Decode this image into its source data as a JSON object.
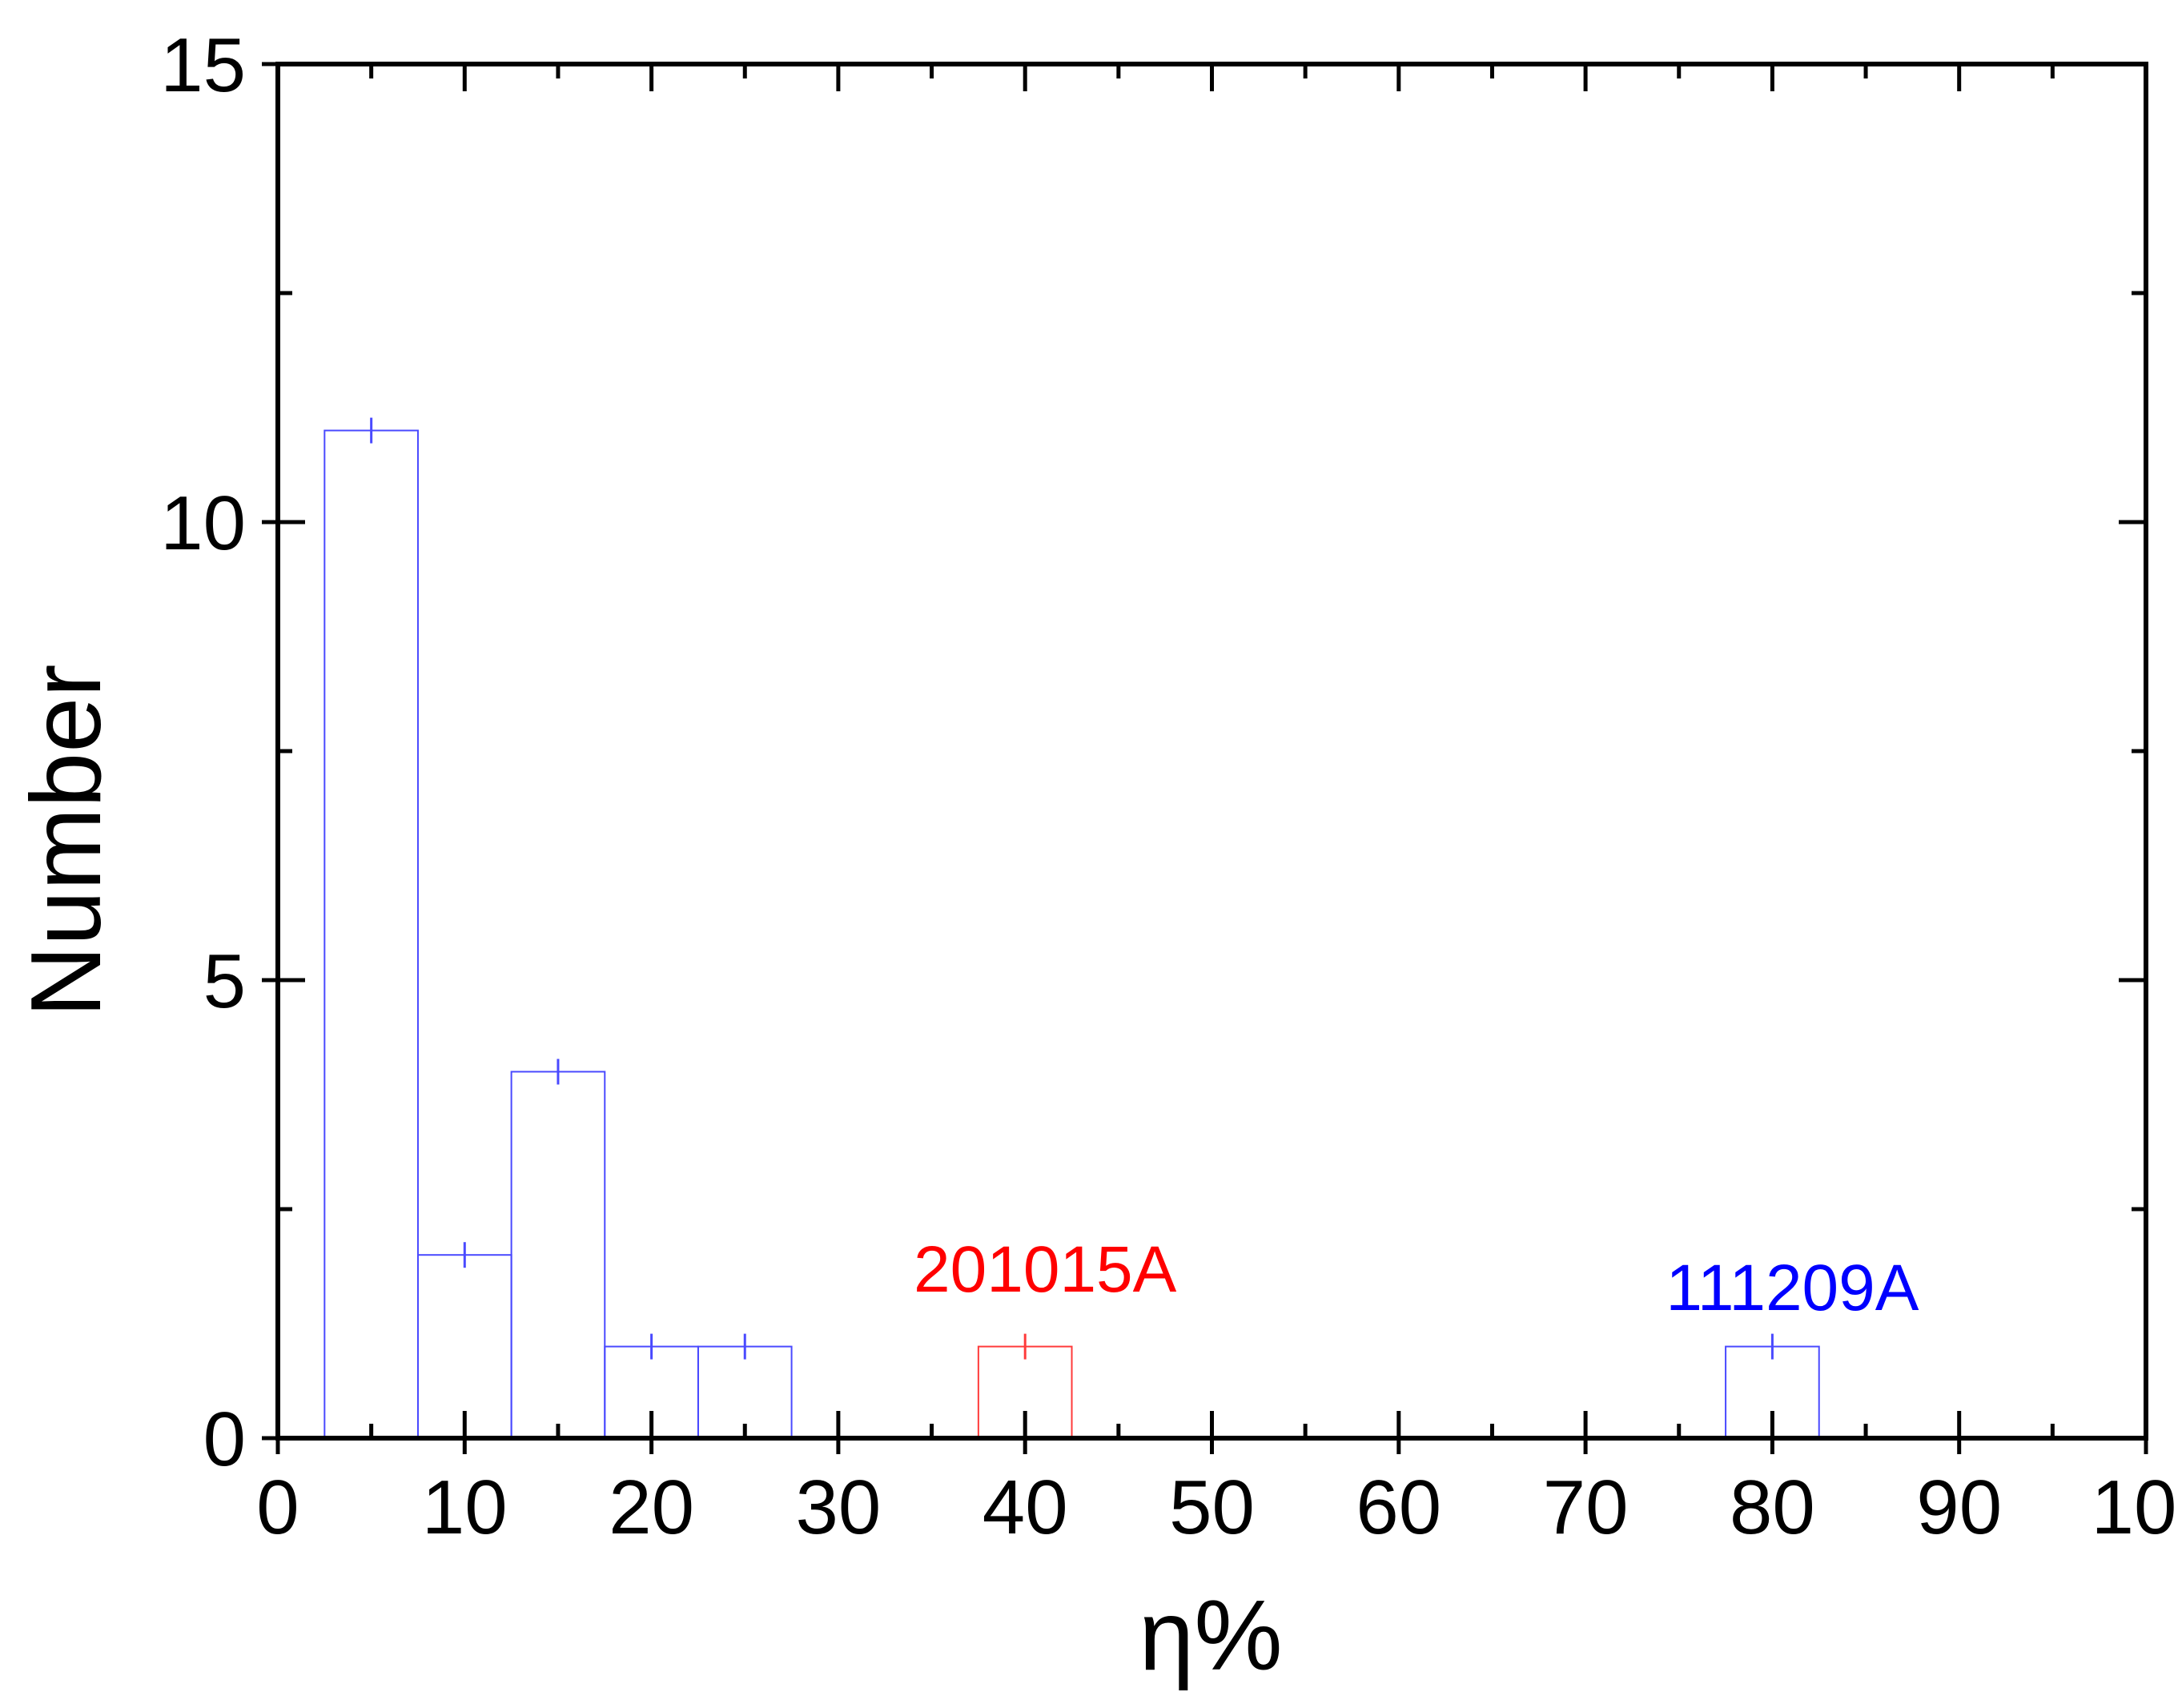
{
  "chart_data": {
    "type": "bar",
    "xlabel": "η%",
    "ylabel": "Number",
    "xlim": [
      0,
      100
    ],
    "ylim": [
      0,
      15
    ],
    "x_ticks": [
      "0",
      "10",
      "20",
      "30",
      "40",
      "50",
      "60",
      "70",
      "80",
      "90",
      "10"
    ],
    "y_ticks": [
      "0",
      "5",
      "10",
      "15"
    ],
    "bin_width": 5,
    "series": [
      {
        "color": "#4a4aff",
        "bins": [
          {
            "center": 5,
            "value": 11
          },
          {
            "center": 10,
            "value": 2
          },
          {
            "center": 15,
            "value": 4
          },
          {
            "center": 20,
            "value": 1
          },
          {
            "center": 25,
            "value": 1
          },
          {
            "center": 80,
            "value": 1
          }
        ]
      },
      {
        "color": "#ff3b3b",
        "bins": [
          {
            "center": 40,
            "value": 1
          }
        ]
      }
    ],
    "annotations": [
      {
        "text": "201015A",
        "x": 40,
        "y": 1.6,
        "color": "#ff0000"
      },
      {
        "text": "111209A",
        "x": 80,
        "y": 1.4,
        "color": "#0000ff"
      }
    ],
    "grid": false,
    "legend": "none"
  }
}
